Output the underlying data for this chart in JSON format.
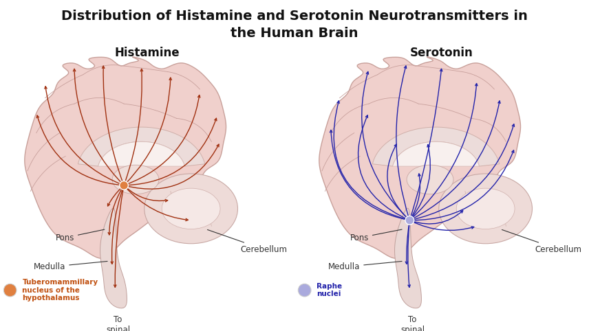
{
  "title": "Distribution of Histamine and Serotonin Neurotransmitters in\nthe Human Brain",
  "title_fontsize": 14,
  "title_fontweight": "bold",
  "background_color": "#ffffff",
  "left_subtitle": "Histamine",
  "right_subtitle": "Serotonin",
  "subtitle_fontsize": 12,
  "subtitle_fontweight": "bold",
  "histamine_color": "#a03010",
  "serotonin_color": "#2222aa",
  "brain_outer_color": "#f0d0cc",
  "brain_outer_edge": "#c8a09a",
  "brain_inner_color": "#f5e0dc",
  "corpus_color": "#ecdcda",
  "corpus_inner_color": "#f8f0ee",
  "stem_color": "#ead8d5",
  "cerebellum_color": "#eedbd8",
  "cerebellum_inner_color": "#f5e8e6",
  "label_color": "#333333",
  "histamine_label_color": "#c05010",
  "serotonin_label_color": "#2222aa",
  "left_legend_label": "Tuberomammillary\nnucleus of the\nhypothalamus",
  "right_legend_label": "Raphe\nnuclei",
  "left_nucleus_color": "#e08040",
  "right_nucleus_color": "#aaaadd",
  "pons_label": "Pons",
  "medulla_label": "Medulla",
  "cerebellum_label": "Cerebellum",
  "spinal_label": "To\nspinal\ncord",
  "label_fontsize": 8.5
}
